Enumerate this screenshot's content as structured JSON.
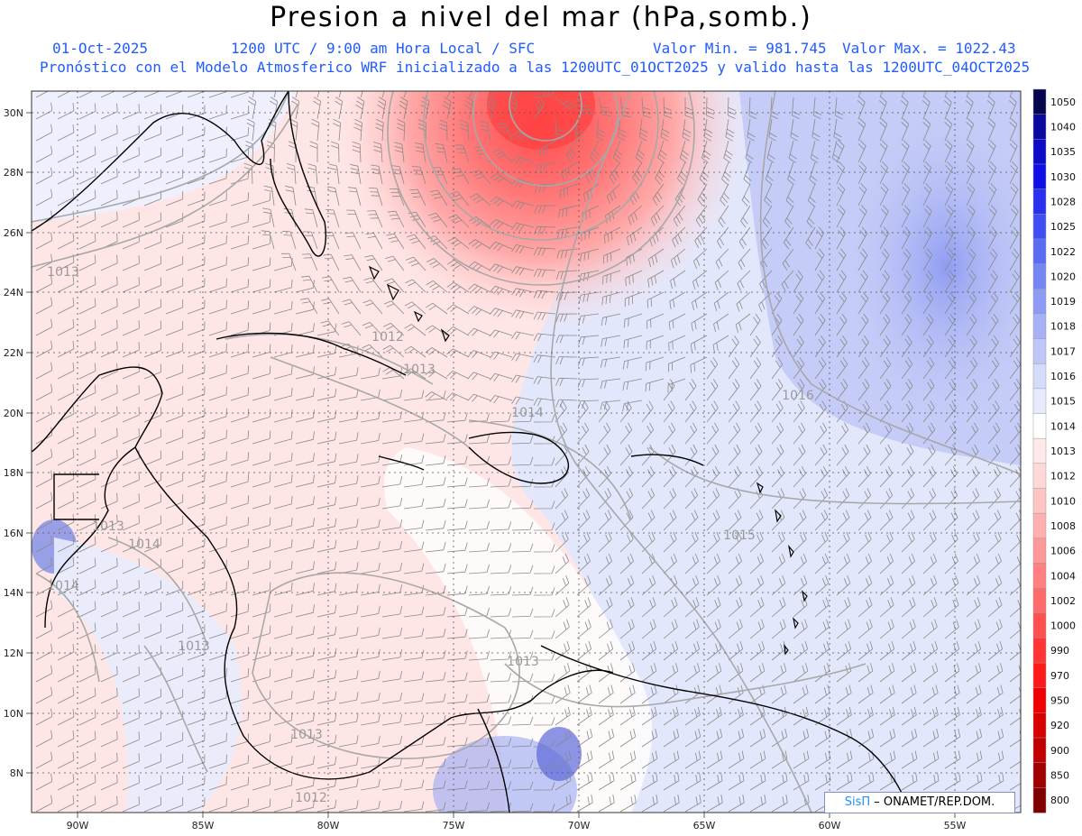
{
  "header": {
    "title": "Presion a nivel del mar (hPa,somb.)",
    "date": "01-Oct-2025",
    "time": "1200 UTC / 9:00 am Hora Local / SFC",
    "min": "Valor Min. = 981.745",
    "max": "Valor Max. = 1022.43",
    "forecast": "Pronóstico con el Modelo Atmosferico WRF inicializado a las 1200UTC_01OCT2025 y valido hasta las  1200UTC_04OCT2025"
  },
  "axes": {
    "lat_ticks": [
      "30N",
      "28N",
      "26N",
      "24N",
      "22N",
      "20N",
      "18N",
      "16N",
      "14N",
      "12N",
      "10N",
      "8N"
    ],
    "lon_ticks": [
      "90W",
      "85W",
      "80W",
      "75W",
      "70W",
      "65W",
      "60W",
      "55W"
    ]
  },
  "contour_labels": [
    {
      "text": "1013"
    },
    {
      "text": "1012"
    },
    {
      "text": "1013"
    },
    {
      "text": "1014"
    },
    {
      "text": "1016"
    },
    {
      "text": "1014"
    },
    {
      "text": "1014"
    },
    {
      "text": "1015"
    },
    {
      "text": "1013"
    },
    {
      "text": "1013"
    },
    {
      "text": "1013"
    },
    {
      "text": "1012"
    },
    {
      "text": "1013"
    }
  ],
  "colorbar": {
    "levels": [
      "1050",
      "1040",
      "1035",
      "1030",
      "1028",
      "1025",
      "1022",
      "1020",
      "1019",
      "1018",
      "1017",
      "1016",
      "1015",
      "1014",
      "1013",
      "1012",
      "1010",
      "1008",
      "1006",
      "1004",
      "1002",
      "1000",
      "990",
      "970",
      "950",
      "920",
      "900",
      "850",
      "800"
    ],
    "colors": [
      "#06064f",
      "#0a0aa0",
      "#0b0bc8",
      "#1010e6",
      "#2a30ee",
      "#3f4ef0",
      "#5a6cf2",
      "#7585f3",
      "#8d9bf4",
      "#a6b1f6",
      "#bfc7f8",
      "#d5dbfa",
      "#e6eafc",
      "#ffffff",
      "#ffe9e9",
      "#ffd8d8",
      "#ffc4c4",
      "#ffb0b0",
      "#ff9898",
      "#ff8080",
      "#ff6a6a",
      "#ff5050",
      "#ff3434",
      "#ff1a1a",
      "#f00000",
      "#d80000",
      "#c00000",
      "#a00000",
      "#800000"
    ]
  },
  "credit": {
    "brand": "SisΠ",
    "text": "– ONAMET/REP.DOM."
  }
}
